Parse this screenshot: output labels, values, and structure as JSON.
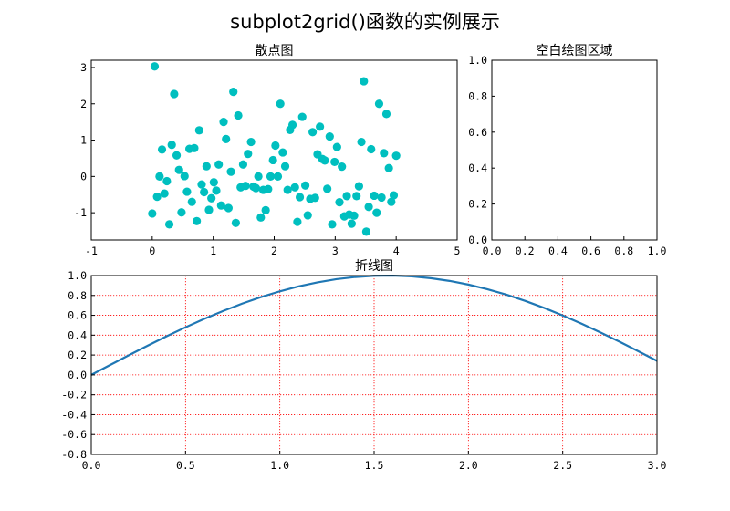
{
  "suptitle": "subplot2grid()函数的实例展示",
  "colors": {
    "scatter": "#00bfbf",
    "line": "#1f77b4",
    "grid": "#ff0000"
  },
  "chart_data": [
    {
      "type": "scatter",
      "title": "散点图",
      "xlim": [
        -1,
        5
      ],
      "ylim": [
        -1.75,
        3.2
      ],
      "xticks": [
        -1,
        0,
        1,
        2,
        3,
        4,
        5
      ],
      "yticks": [
        -1,
        0,
        1,
        2,
        3
      ],
      "grid": false,
      "series": [
        {
          "x": [
            0.0,
            0.04,
            0.08,
            0.12,
            0.16,
            0.2,
            0.24,
            0.28,
            0.32,
            0.36,
            0.4,
            0.44,
            0.48,
            0.53,
            0.57,
            0.61,
            0.65,
            0.69,
            0.73,
            0.77,
            0.81,
            0.85,
            0.89,
            0.93,
            0.97,
            1.01,
            1.05,
            1.09,
            1.13,
            1.17,
            1.21,
            1.25,
            1.29,
            1.33,
            1.37,
            1.41,
            1.45,
            1.49,
            1.53,
            1.57,
            1.62,
            1.66,
            1.7,
            1.74,
            1.78,
            1.82,
            1.86,
            1.9,
            1.94,
            1.98,
            2.02,
            2.06,
            2.1,
            2.14,
            2.18,
            2.22,
            2.26,
            2.3,
            2.34,
            2.38,
            2.42,
            2.46,
            2.51,
            2.55,
            2.59,
            2.63,
            2.67,
            2.71,
            2.75,
            2.79,
            2.83,
            2.87,
            2.91,
            2.95,
            2.99,
            3.03,
            3.07,
            3.11,
            3.15,
            3.19,
            3.23,
            3.27,
            3.31,
            3.35,
            3.39,
            3.43,
            3.47,
            3.51,
            3.55,
            3.59,
            3.64,
            3.68,
            3.72,
            3.76,
            3.8,
            3.84,
            3.88,
            3.92,
            3.96,
            4.0
          ],
          "y": [
            -1.02,
            3.03,
            -0.56,
            0.0,
            0.74,
            -0.47,
            -0.13,
            -1.32,
            0.87,
            2.27,
            0.58,
            0.18,
            -0.99,
            0.01,
            -0.42,
            0.76,
            -0.7,
            0.78,
            -1.23,
            1.27,
            -0.22,
            -0.43,
            0.28,
            -0.92,
            -0.6,
            -0.16,
            -0.39,
            0.33,
            -0.8,
            1.5,
            1.03,
            -0.87,
            0.13,
            2.33,
            -1.28,
            1.68,
            -0.3,
            0.33,
            -0.26,
            0.62,
            0.95,
            -0.28,
            -0.32,
            0.0,
            -1.13,
            -0.37,
            -0.93,
            -0.35,
            0.0,
            0.45,
            0.85,
            0.0,
            2.0,
            0.66,
            0.28,
            -0.37,
            1.28,
            1.42,
            -0.3,
            -1.25,
            -0.57,
            1.64,
            -0.25,
            -1.07,
            -0.62,
            1.22,
            -0.59,
            0.61,
            1.37,
            0.48,
            0.44,
            -0.34,
            1.1,
            -1.32,
            0.4,
            0.81,
            -0.71,
            0.27,
            -1.1,
            -0.54,
            -1.05,
            -1.3,
            -1.08,
            -0.54,
            -0.27,
            0.95,
            2.62,
            -1.52,
            -0.84,
            0.75,
            -0.53,
            -1.0,
            2.0,
            -0.58,
            0.64,
            1.72,
            0.23,
            -0.7,
            -0.52,
            0.57
          ]
        }
      ]
    },
    {
      "type": "empty",
      "title": "空白绘图区域",
      "xlim": [
        0,
        1
      ],
      "ylim": [
        0,
        1
      ],
      "xticks": [
        0.0,
        0.2,
        0.4,
        0.6,
        0.8,
        1.0
      ],
      "yticks": [
        0.0,
        0.2,
        0.4,
        0.6,
        0.8,
        1.0
      ],
      "grid": false
    },
    {
      "type": "line",
      "title": "折线图",
      "xlim": [
        0,
        3
      ],
      "ylim": [
        -0.8,
        1.0
      ],
      "xticks": [
        0.0,
        0.5,
        1.0,
        1.5,
        2.0,
        2.5,
        3.0
      ],
      "yticks": [
        -0.8,
        -0.6,
        -0.4,
        -0.2,
        0.0,
        0.2,
        0.4,
        0.6,
        0.8,
        1.0
      ],
      "grid": true,
      "series": [
        {
          "x": [
            0.0,
            0.1,
            0.2,
            0.3,
            0.4,
            0.5,
            0.6,
            0.7,
            0.8,
            0.9,
            1.0,
            1.1,
            1.2,
            1.3,
            1.4,
            1.5,
            1.6,
            1.7,
            1.8,
            1.9,
            2.0,
            2.1,
            2.2,
            2.3,
            2.4,
            2.5,
            2.6,
            2.7,
            2.8,
            2.9,
            3.0
          ],
          "y": [
            0.0,
            0.0998,
            0.1987,
            0.2955,
            0.3894,
            0.4794,
            0.5646,
            0.6442,
            0.7174,
            0.7833,
            0.8415,
            0.8912,
            0.932,
            0.9636,
            0.9854,
            0.9975,
            0.9996,
            0.9917,
            0.9738,
            0.9463,
            0.9093,
            0.8632,
            0.8085,
            0.7457,
            0.6755,
            0.5985,
            0.5155,
            0.4274,
            0.335,
            0.2392,
            0.1411
          ]
        }
      ]
    }
  ]
}
